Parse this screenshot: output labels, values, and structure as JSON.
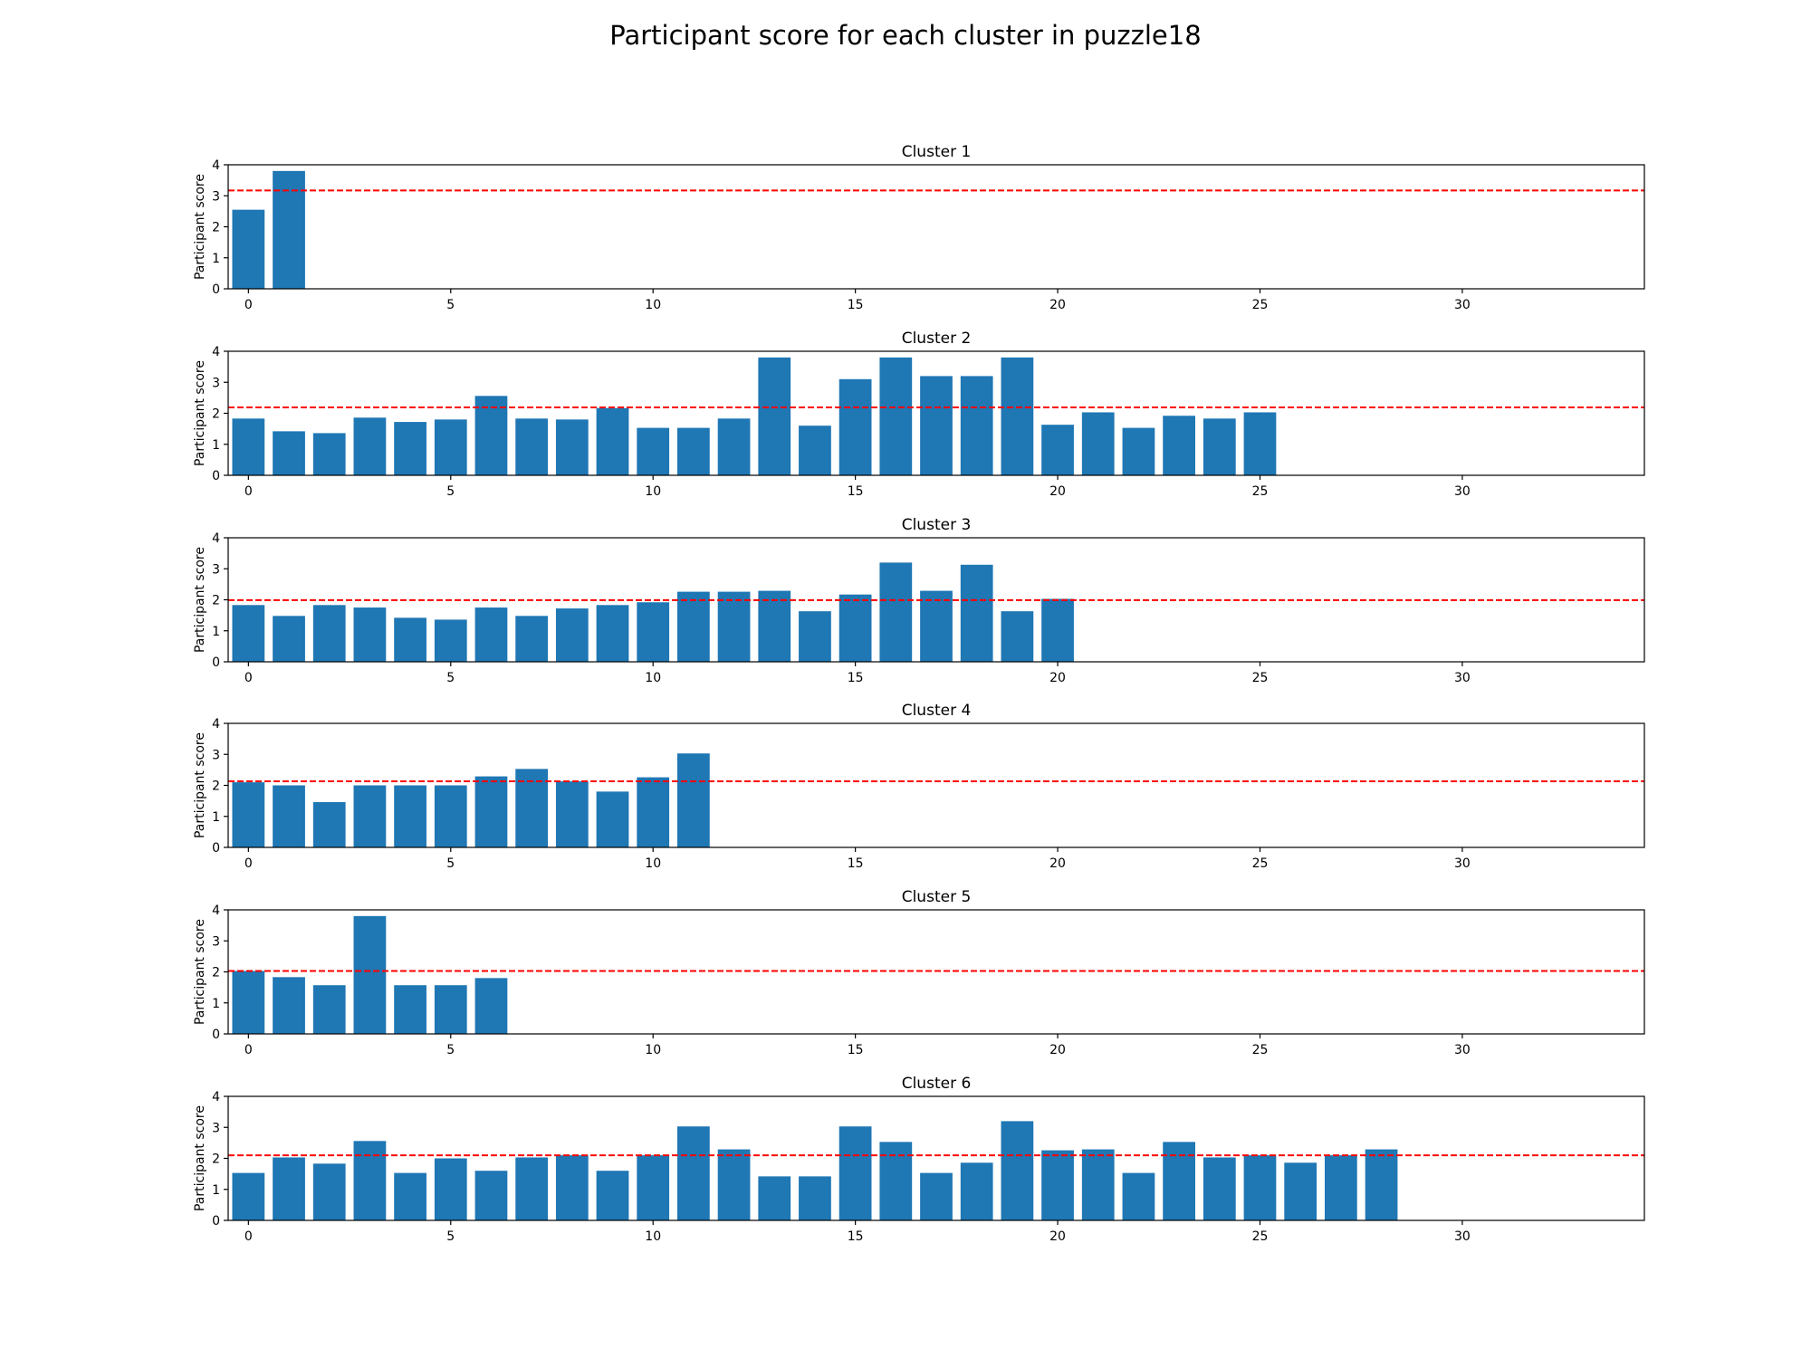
{
  "chart_data": {
    "type": "bar",
    "title": "Participant score for each cluster in puzzle18",
    "bar_color": "#1f77b4",
    "threshold_color": "#ff0000",
    "shared_axes": {
      "ylabel": "Participant score",
      "ylim": [
        0,
        4
      ],
      "yticks": [
        0,
        1,
        2,
        3,
        4
      ],
      "xlim": [
        -0.5,
        34.5
      ],
      "xticks": [
        0,
        5,
        10,
        15,
        20,
        25,
        30
      ]
    },
    "subplots": [
      {
        "title": "Cluster 1",
        "values": [
          2.55,
          3.8
        ],
        "threshold": 3.17
      },
      {
        "title": "Cluster 2",
        "values": [
          1.83,
          1.42,
          1.36,
          1.86,
          1.72,
          1.8,
          2.56,
          1.83,
          1.8,
          2.17,
          1.53,
          1.53,
          1.83,
          3.8,
          1.6,
          3.1,
          3.8,
          3.2,
          3.2,
          3.8,
          1.63,
          2.03,
          1.53,
          1.92,
          1.83,
          2.03
        ],
        "threshold": 2.19
      },
      {
        "title": "Cluster 3",
        "values": [
          1.83,
          1.48,
          1.83,
          1.75,
          1.42,
          1.36,
          1.75,
          1.48,
          1.72,
          1.83,
          1.92,
          2.26,
          2.26,
          2.29,
          1.63,
          2.17,
          3.2,
          2.29,
          3.13,
          1.63,
          2.03
        ],
        "threshold": 1.99
      },
      {
        "title": "Cluster 4",
        "values": [
          2.1,
          2.0,
          1.46,
          2.0,
          2.0,
          2.0,
          2.29,
          2.53,
          2.13,
          1.8,
          2.26,
          3.03
        ],
        "threshold": 2.13
      },
      {
        "title": "Cluster 5",
        "values": [
          2.03,
          1.83,
          1.57,
          3.8,
          1.57,
          1.57,
          1.8
        ],
        "threshold": 2.03
      },
      {
        "title": "Cluster 6",
        "values": [
          1.53,
          2.03,
          1.83,
          2.56,
          1.53,
          2.0,
          1.6,
          2.03,
          2.1,
          1.6,
          2.1,
          3.03,
          2.29,
          1.42,
          1.42,
          3.03,
          2.53,
          1.53,
          1.86,
          3.2,
          2.26,
          2.29,
          1.53,
          2.53,
          2.03,
          2.1,
          1.86,
          2.1,
          2.29
        ],
        "threshold": 2.1
      }
    ]
  }
}
